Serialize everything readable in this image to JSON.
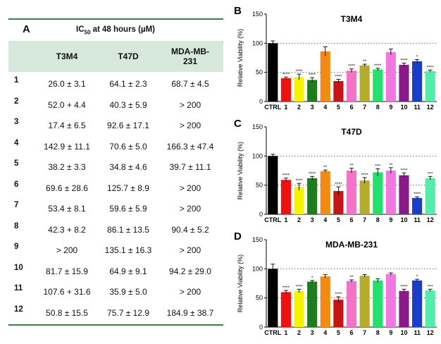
{
  "table": {
    "letter": "A",
    "title_prefix": "IC",
    "title_sub": "50",
    "title_suffix": " at 48 hours (µM)",
    "columns": [
      "T3M4",
      "T47D",
      "MDA-MB-231"
    ],
    "rows": [
      {
        "id": "1",
        "values": [
          "26.0 ± 3.1",
          "64.1 ± 2.3",
          "68.7 ± 4.5"
        ]
      },
      {
        "id": "2",
        "values": [
          "52.0 + 4.4",
          "40.3 ± 5.9",
          "> 200"
        ]
      },
      {
        "id": "3",
        "values": [
          "17.4 ± 6.5",
          "92.6 ± 17.1",
          "> 200"
        ]
      },
      {
        "id": "4",
        "values": [
          "142.9 ± 11.1",
          "70.6 ± 5.0",
          "166.3 ± 47.4"
        ]
      },
      {
        "id": "5",
        "values": [
          "38.2 ± 3.3",
          "34.8 ± 4.6",
          "39.7 ± 11.1"
        ]
      },
      {
        "id": "6",
        "values": [
          "69.6 ± 28.6",
          "125.7 ± 8.9",
          "> 200"
        ]
      },
      {
        "id": "7",
        "values": [
          "53.4 ± 8.1",
          "59.6 ± 5.9",
          "> 200"
        ]
      },
      {
        "id": "8",
        "values": [
          "42.3 + 8.2",
          "86.1 ± 13.5",
          "90.4 ± 5.2"
        ]
      },
      {
        "id": "9",
        "values": [
          "> 200",
          "135.1 ± 16.3",
          "> 200"
        ]
      },
      {
        "id": "10",
        "values": [
          "81.7 ± 15.9",
          "64.9 ± 9.1",
          "94.2 ± 29.0"
        ]
      },
      {
        "id": "11",
        "values": [
          "107.6 + 31.6",
          "35.9 ± 5.0",
          "> 200"
        ]
      },
      {
        "id": "12",
        "values": [
          "50.8 ± 15.5",
          "75.7 ± 12.9",
          "184.9 ± 38.7"
        ]
      }
    ]
  },
  "chart_data": [
    {
      "type": "bar",
      "letter": "B",
      "title": "T3M4",
      "ylabel": "Relative Viability (%)",
      "ylim": [
        0,
        150
      ],
      "yticks": [
        0,
        50,
        100,
        150
      ],
      "reference_lines": [
        50,
        100
      ],
      "categories": [
        "CTRL",
        "1",
        "2",
        "3",
        "4",
        "5",
        "6",
        "7",
        "8",
        "9",
        "10",
        "11",
        "12"
      ],
      "values": [
        100,
        40,
        42,
        37,
        86,
        35,
        53,
        62,
        55,
        85,
        63,
        69,
        52
      ],
      "errors": [
        4,
        2,
        5,
        4,
        8,
        3,
        3,
        2,
        2,
        5,
        3,
        3,
        2
      ],
      "significance": [
        "",
        "****",
        "****",
        "****",
        "",
        "****",
        "****",
        "**",
        "****",
        "",
        "****",
        "*",
        "****"
      ],
      "colors": [
        "#000000",
        "#ee1111",
        "#f4f400",
        "#1e7b1e",
        "#f28a14",
        "#c81414",
        "#f472c8",
        "#b3ad2a",
        "#22e06b",
        "#f078e0",
        "#8a1a8a",
        "#1a3dcc",
        "#55ecaa"
      ]
    },
    {
      "type": "bar",
      "letter": "C",
      "title": "T47D",
      "ylabel": "Relative Viability (%)",
      "ylim": [
        0,
        150
      ],
      "yticks": [
        0,
        50,
        100,
        150
      ],
      "reference_lines": [
        50,
        100
      ],
      "categories": [
        "CTRL",
        "1",
        "2",
        "3",
        "4",
        "5",
        "6",
        "7",
        "8",
        "9",
        "10",
        "11",
        "12"
      ],
      "values": [
        100,
        59,
        47,
        62,
        74,
        40,
        75,
        58,
        72,
        75,
        67,
        28,
        62
      ],
      "errors": [
        3,
        3,
        6,
        3,
        2,
        7,
        4,
        5,
        6,
        5,
        4,
        2,
        3
      ],
      "significance": [
        "",
        "****",
        "****",
        "****",
        "**",
        "****",
        "**",
        "****",
        "***",
        "**",
        "****",
        "****",
        "***"
      ],
      "colors": [
        "#000000",
        "#ee1111",
        "#f4f400",
        "#1e7b1e",
        "#f28a14",
        "#c81414",
        "#f472c8",
        "#b3ad2a",
        "#22e06b",
        "#f078e0",
        "#8a1a8a",
        "#1a3dcc",
        "#55ecaa"
      ]
    },
    {
      "type": "bar",
      "letter": "D",
      "title": "MDA-MB-231",
      "ylabel": "Relative Viability (%)",
      "ylim": [
        0,
        150
      ],
      "yticks": [
        0,
        50,
        100,
        150
      ],
      "reference_lines": [
        50,
        100
      ],
      "categories": [
        "CTRL",
        "1",
        "2",
        "3",
        "4",
        "5",
        "6",
        "7",
        "8",
        "9",
        "10",
        "11",
        "12"
      ],
      "values": [
        100,
        60,
        62,
        78,
        87,
        47,
        79,
        88,
        80,
        91,
        62,
        80,
        63
      ],
      "errors": [
        8,
        3,
        3,
        2,
        3,
        5,
        2,
        2,
        3,
        2,
        3,
        2,
        2
      ],
      "significance": [
        "",
        "****",
        "****",
        "*",
        "",
        "****",
        "**",
        "",
        "",
        "",
        "****",
        "*",
        "***"
      ],
      "colors": [
        "#000000",
        "#ee1111",
        "#f4f400",
        "#1e7b1e",
        "#f28a14",
        "#c81414",
        "#f472c8",
        "#b3ad2a",
        "#22e06b",
        "#f078e0",
        "#8a1a8a",
        "#1a3dcc",
        "#55ecaa"
      ]
    }
  ]
}
